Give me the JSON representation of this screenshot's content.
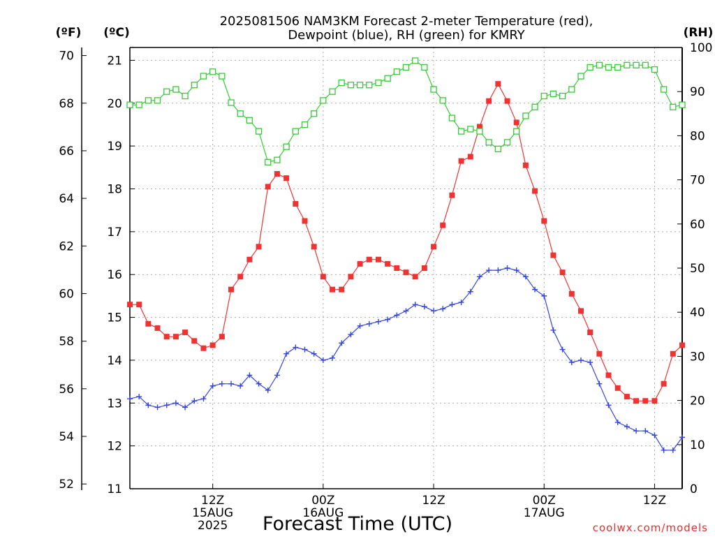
{
  "chart_data": {
    "type": "line",
    "title_line1": "2025081506 NAM3KM Forecast 2-meter Temperature (red),",
    "title_line2": "Dewpoint (blue), RH (green) for KMRY",
    "xlabel": "Forecast Time (UTC)",
    "watermark": "coolwx.com/models",
    "units": {
      "left_f": "(ºF)",
      "left_c": "(ºC)",
      "right_rh": "(RH)"
    },
    "x_start_hour": 3,
    "x_end_hour": 63,
    "x_step_hours": 1,
    "x_ticks": [
      {
        "hour": 12,
        "lines": [
          "12Z",
          "15AUG",
          "2025"
        ]
      },
      {
        "hour": 24,
        "lines": [
          "00Z",
          "16AUG"
        ]
      },
      {
        "hour": 36,
        "lines": [
          "12Z"
        ]
      },
      {
        "hour": 48,
        "lines": [
          "00Z",
          "17AUG"
        ]
      },
      {
        "hour": 60,
        "lines": [
          "12Z"
        ]
      }
    ],
    "celsius_axis": {
      "min": 11,
      "max": 21.3,
      "ticks": [
        11,
        12,
        13,
        14,
        15,
        16,
        17,
        18,
        19,
        20,
        21
      ]
    },
    "fahrenheit_ticks": [
      52,
      54,
      56,
      58,
      60,
      62,
      64,
      66,
      68,
      70
    ],
    "rh_axis": {
      "min": 0,
      "max": 100,
      "ticks": [
        0,
        10,
        20,
        30,
        40,
        50,
        60,
        70,
        80,
        90,
        100
      ]
    },
    "grid": true,
    "series": [
      {
        "name": "Temperature",
        "unit": "C",
        "color": "#ee3333",
        "marker": "filled-square",
        "values": [
          15.3,
          15.3,
          14.85,
          14.75,
          14.55,
          14.55,
          14.65,
          14.45,
          14.28,
          14.35,
          14.55,
          15.65,
          15.95,
          16.35,
          16.65,
          18.05,
          18.35,
          18.25,
          17.65,
          17.25,
          16.65,
          15.95,
          15.65,
          15.65,
          15.95,
          16.25,
          16.35,
          16.35,
          16.25,
          16.15,
          16.05,
          15.95,
          16.15,
          16.65,
          17.15,
          17.85,
          18.65,
          18.75,
          19.45,
          20.05,
          20.45,
          20.05,
          19.55,
          18.55,
          17.95,
          17.25,
          16.45,
          16.05,
          15.55,
          15.15,
          14.65,
          14.15,
          13.65,
          13.35,
          13.15,
          13.05,
          13.05,
          13.05,
          13.45,
          14.15,
          14.35
        ]
      },
      {
        "name": "Dewpoint",
        "unit": "C",
        "color": "#3344dd",
        "marker": "plus",
        "values": [
          13.1,
          13.15,
          12.95,
          12.9,
          12.95,
          13.0,
          12.9,
          13.05,
          13.1,
          13.4,
          13.45,
          13.45,
          13.4,
          13.65,
          13.45,
          13.3,
          13.65,
          14.15,
          14.3,
          14.25,
          14.15,
          14.0,
          14.05,
          14.4,
          14.6,
          14.8,
          14.85,
          14.9,
          14.95,
          15.05,
          15.15,
          15.3,
          15.25,
          15.15,
          15.2,
          15.3,
          15.35,
          15.6,
          15.95,
          16.1,
          16.1,
          16.15,
          16.1,
          15.95,
          15.65,
          15.5,
          14.7,
          14.25,
          13.95,
          14.0,
          13.95,
          13.45,
          12.95,
          12.55,
          12.45,
          12.35,
          12.35,
          12.25,
          11.9,
          11.9,
          12.2
        ]
      },
      {
        "name": "RH",
        "unit": "%",
        "color": "#33cc33",
        "marker": "open-square",
        "values": [
          87,
          87,
          88,
          88,
          90,
          90.5,
          89,
          91.5,
          93.5,
          94.5,
          93.5,
          87.5,
          85,
          83.5,
          81,
          74,
          74.5,
          77.5,
          81,
          82.5,
          85,
          88,
          90,
          92,
          91.5,
          91.5,
          91.5,
          92,
          93,
          94.5,
          95.5,
          97,
          95.5,
          90.5,
          88,
          84,
          81,
          81.5,
          81,
          78.5,
          77,
          78.5,
          81,
          84.5,
          86.5,
          89,
          89.5,
          89,
          90.5,
          93.5,
          95.5,
          96,
          95.5,
          95.5,
          96,
          96,
          96,
          95,
          90.5,
          86.5,
          87
        ]
      }
    ]
  }
}
